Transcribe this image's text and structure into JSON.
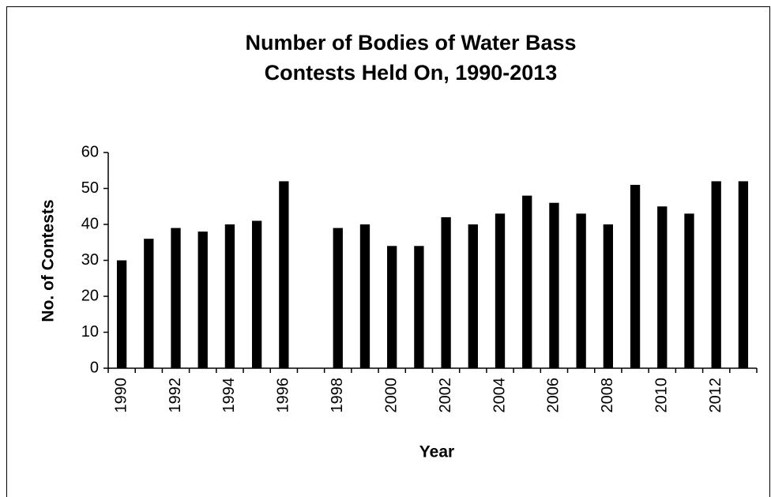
{
  "chart_data": {
    "type": "bar",
    "title": [
      "Number of Bodies of Water Bass",
      "Contests Held On, 1990-2013"
    ],
    "x_label": "Year",
    "y_label": "No. of Contests",
    "categories": [
      "1990",
      null,
      "1992",
      null,
      "1994",
      null,
      "1996",
      null,
      "1998",
      null,
      "2000",
      null,
      "2002",
      null,
      "2004",
      null,
      "2006",
      null,
      "2008",
      null,
      "2010",
      null,
      "2012",
      null
    ],
    "values": [
      30,
      36,
      39,
      38,
      40,
      41,
      52,
      null,
      39,
      40,
      34,
      34,
      42,
      40,
      43,
      48,
      46,
      43,
      40,
      51,
      45,
      43,
      52,
      52
    ],
    "color": "#000000",
    "ylim": [
      0,
      60
    ],
    "yticks": [
      0,
      10,
      20,
      30,
      40,
      50,
      60
    ],
    "grid": false
  }
}
